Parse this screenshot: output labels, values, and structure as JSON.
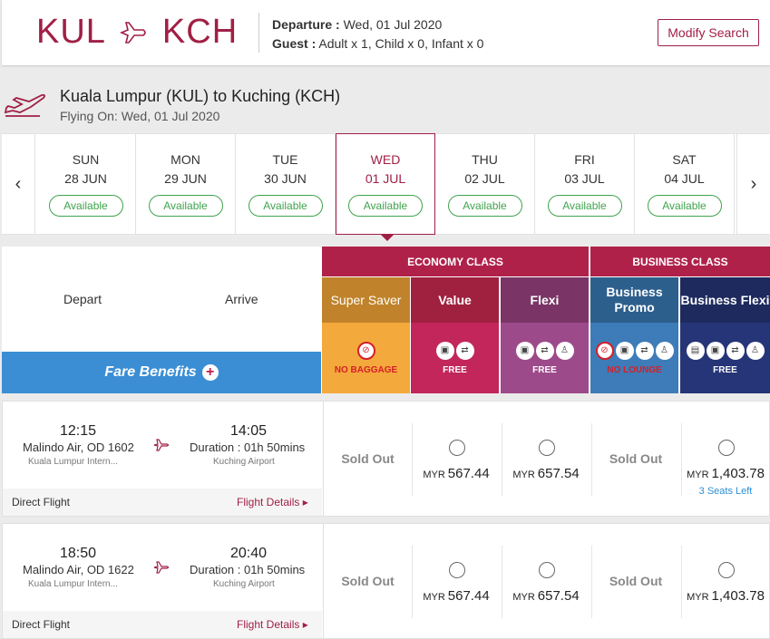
{
  "header": {
    "origin": "KUL",
    "destination": "KCH",
    "departure_label": "Departure :",
    "departure_value": " Wed, 01 Jul 2020",
    "guest_label": "Guest :",
    "guest_value": " Adult x 1, Child x 0, Infant x 0",
    "modify_button": "Modify Search"
  },
  "route": {
    "title": "Kuala Lumpur (KUL) to Kuching (KCH)",
    "subtitle": "Flying On: Wed, 01 Jul 2020"
  },
  "dates": [
    {
      "day": "SUN",
      "date": "28 JUN",
      "status": "Available"
    },
    {
      "day": "MON",
      "date": "29 JUN",
      "status": "Available"
    },
    {
      "day": "TUE",
      "date": "30 JUN",
      "status": "Available"
    },
    {
      "day": "WED",
      "date": "01 JUL",
      "status": "Available"
    },
    {
      "day": "THU",
      "date": "02 JUL",
      "status": "Available"
    },
    {
      "day": "FRI",
      "date": "03 JUL",
      "status": "Available"
    },
    {
      "day": "SAT",
      "date": "04 JUL",
      "status": "Available"
    }
  ],
  "fare_header": {
    "depart": "Depart",
    "arrive": "Arrive",
    "benefits": "Fare Benefits",
    "economy": "ECONOMY CLASS",
    "business": "BUSINESS CLASS"
  },
  "fare_types": [
    {
      "name": "Super Saver",
      "note": "NO BAGGAGE",
      "color": "#c0832b",
      "body_color": "#f4a93c"
    },
    {
      "name": "Value",
      "note": "FREE",
      "color": "#a0203f",
      "body_color": "#c2265a"
    },
    {
      "name": "Flexi",
      "note": "FREE",
      "color": "#7a3566",
      "body_color": "#9d4a8a"
    },
    {
      "name": "Business Promo",
      "note": "NO LOUNGE",
      "color": "#2d5f8c",
      "body_color": "#3d7cb8"
    },
    {
      "name": "Business Flexi",
      "note": "FREE",
      "color": "#1e2a5e",
      "body_color": "#263577"
    }
  ],
  "flights": [
    {
      "dep_time": "12:15",
      "arr_time": "14:05",
      "carrier": "Malindo Air, OD 1602",
      "from": "Kuala Lumpur Intern...",
      "duration": "Duration : 01h 50mins",
      "to": "Kuching Airport",
      "type": "Direct Flight",
      "details": "Flight Details ▸",
      "fares": [
        "Sold Out",
        "567.44",
        "657.54",
        "Sold Out",
        "1,403.78"
      ],
      "currency": "MYR",
      "seats_left": "3 Seats Left"
    },
    {
      "dep_time": "18:50",
      "arr_time": "20:40",
      "carrier": "Malindo Air, OD 1622",
      "from": "Kuala Lumpur Intern...",
      "duration": "Duration : 01h 50mins",
      "to": "Kuching Airport",
      "type": "Direct Flight",
      "details": "Flight Details ▸",
      "fares": [
        "Sold Out",
        "567.44",
        "657.54",
        "Sold Out",
        "1,403.78"
      ],
      "currency": "MYR"
    }
  ]
}
